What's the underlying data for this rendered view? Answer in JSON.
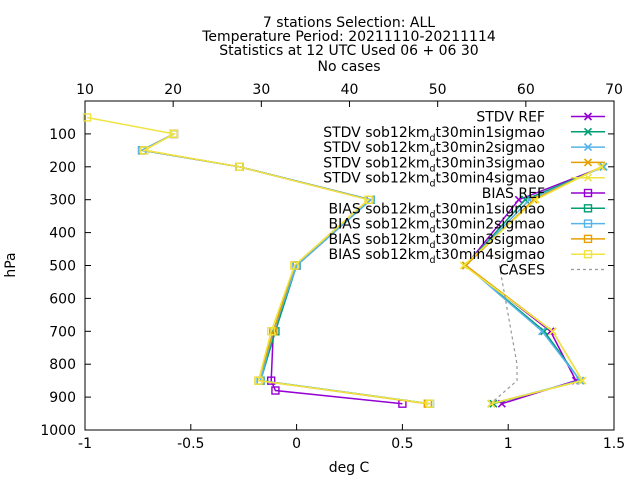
{
  "chart_data": {
    "type": "line",
    "title_lines": [
      "7 stations Selection: ALL",
      "Temperature  Period: 20211110-20211114",
      "Statistics at 12 UTC  Used 06 + 06 30",
      "No cases"
    ],
    "xlabel": "deg C",
    "ylabel": "hPa",
    "xlim": [
      -1,
      1.5
    ],
    "x_ticks": [
      "-1",
      "-0.5",
      "0",
      "0.5",
      "1",
      "1.5"
    ],
    "x2lim": [
      10,
      70
    ],
    "x2_ticks": [
      "10",
      "20",
      "30",
      "40",
      "50",
      "60",
      "70"
    ],
    "ylim": [
      1000,
      0
    ],
    "y_ticks": [
      "100",
      "200",
      "300",
      "400",
      "500",
      "600",
      "700",
      "800",
      "900",
      "1000"
    ],
    "grid": false,
    "legend_position": "top-right",
    "series": [
      {
        "name": "STDV REF",
        "sub": "",
        "name_end": "",
        "color": "#9400d3",
        "marker": "x",
        "dash": false,
        "points": [
          [
            1.45,
            200
          ],
          [
            1.05,
            300
          ],
          [
            0.8,
            500
          ],
          [
            1.2,
            700
          ],
          [
            1.32,
            850
          ],
          [
            0.97,
            920
          ]
        ]
      },
      {
        "name": "STDV sob12km",
        "sub": "d",
        "name_end": "t30min1sigmao",
        "color": "#009e73",
        "marker": "x",
        "dash": false,
        "points": [
          [
            1.45,
            200
          ],
          [
            1.08,
            300
          ],
          [
            0.8,
            500
          ],
          [
            1.17,
            700
          ],
          [
            1.34,
            850
          ],
          [
            0.93,
            920
          ]
        ]
      },
      {
        "name": "STDV sob12km",
        "sub": "d",
        "name_end": "t30min2sigmao",
        "color": "#56b4e9",
        "marker": "x",
        "dash": false,
        "points": [
          [
            1.45,
            200
          ],
          [
            1.1,
            300
          ],
          [
            0.8,
            500
          ],
          [
            1.16,
            700
          ],
          [
            1.34,
            850
          ],
          [
            0.92,
            920
          ]
        ]
      },
      {
        "name": "STDV sob12km",
        "sub": "d",
        "name_end": "t30min3sigmao",
        "color": "#e69f00",
        "marker": "x",
        "dash": false,
        "points": [
          [
            1.44,
            200
          ],
          [
            1.12,
            300
          ],
          [
            0.8,
            500
          ],
          [
            1.21,
            700
          ],
          [
            1.35,
            850
          ],
          [
            0.92,
            920
          ]
        ]
      },
      {
        "name": "STDV sob12km",
        "sub": "d",
        "name_end": "t30min4sigmao",
        "color": "#f0e442",
        "marker": "x",
        "dash": false,
        "points": [
          [
            1.44,
            200
          ],
          [
            1.13,
            300
          ],
          [
            0.79,
            500
          ],
          [
            1.21,
            700
          ],
          [
            1.35,
            850
          ],
          [
            0.92,
            920
          ]
        ]
      },
      {
        "name": "BIAS REF",
        "sub": "",
        "name_end": "",
        "color": "#9400d3",
        "marker": "sq",
        "dash": false,
        "points": [
          [
            -0.58,
            100
          ],
          [
            -0.73,
            150
          ],
          [
            -0.27,
            200
          ],
          [
            0.35,
            300
          ],
          [
            0.0,
            500
          ],
          [
            -0.11,
            700
          ],
          [
            -0.12,
            850
          ],
          [
            -0.1,
            880
          ],
          [
            0.5,
            920
          ]
        ]
      },
      {
        "name": "BIAS sob12km",
        "sub": "d",
        "name_end": "t30min1sigmao",
        "color": "#009e73",
        "marker": "sq",
        "dash": false,
        "points": [
          [
            -0.58,
            100
          ],
          [
            -0.73,
            150
          ],
          [
            -0.27,
            200
          ],
          [
            0.35,
            300
          ],
          [
            0.0,
            500
          ],
          [
            -0.1,
            700
          ],
          [
            -0.17,
            850
          ],
          [
            0.63,
            920
          ]
        ]
      },
      {
        "name": "BIAS sob12km",
        "sub": "d",
        "name_end": "t30min2sigmao",
        "color": "#56b4e9",
        "marker": "sq",
        "dash": false,
        "points": [
          [
            -0.58,
            100
          ],
          [
            -0.73,
            150
          ],
          [
            -0.27,
            200
          ],
          [
            0.35,
            300
          ],
          [
            0.0,
            500
          ],
          [
            -0.11,
            700
          ],
          [
            -0.17,
            850
          ],
          [
            0.63,
            920
          ]
        ]
      },
      {
        "name": "BIAS sob12km",
        "sub": "d",
        "name_end": "t30min3sigmao",
        "color": "#e69f00",
        "marker": "sq",
        "dash": false,
        "points": [
          [
            -0.58,
            100
          ],
          [
            -0.72,
            150
          ],
          [
            -0.27,
            200
          ],
          [
            0.34,
            300
          ],
          [
            -0.01,
            500
          ],
          [
            -0.11,
            700
          ],
          [
            -0.18,
            850
          ],
          [
            0.62,
            920
          ]
        ]
      },
      {
        "name": "BIAS sob12km",
        "sub": "d",
        "name_end": "t30min4sigmao",
        "color": "#f0e442",
        "marker": "sq",
        "dash": false,
        "points": [
          [
            -0.99,
            50
          ],
          [
            -0.58,
            100
          ],
          [
            -0.72,
            150
          ],
          [
            -0.27,
            200
          ],
          [
            0.34,
            300
          ],
          [
            -0.01,
            500
          ],
          [
            -0.12,
            700
          ],
          [
            -0.18,
            850
          ],
          [
            0.63,
            920
          ]
        ]
      },
      {
        "name": "CASES",
        "sub": "",
        "name_end": "",
        "color": "#999999",
        "marker": "none",
        "dash": true,
        "axis": "x2",
        "points": [
          [
            57,
            500
          ],
          [
            59,
            800
          ],
          [
            59,
            850
          ],
          [
            56,
            920
          ]
        ]
      }
    ]
  }
}
